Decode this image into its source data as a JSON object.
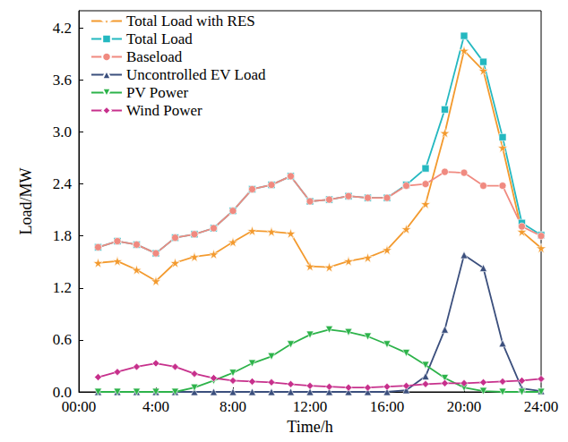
{
  "chart_data": {
    "type": "line",
    "x_label": "Time/h",
    "y_label": "Load/MW",
    "xlim": [
      0,
      24
    ],
    "xticks": [
      {
        "value": 0,
        "label": "00:00"
      },
      {
        "value": 4,
        "label": "4:00"
      },
      {
        "value": 8,
        "label": "8:00"
      },
      {
        "value": 12,
        "label": "12:00"
      },
      {
        "value": 16,
        "label": "16:00"
      },
      {
        "value": 20,
        "label": "20:00"
      },
      {
        "value": 24,
        "label": "24:00"
      }
    ],
    "ylim": [
      0,
      4.4
    ],
    "yticks": [
      {
        "value": 0,
        "label": "0.0"
      },
      0.6,
      1.2,
      1.8,
      2.4,
      {
        "value": 3,
        "label": "3.0"
      },
      3.6,
      4.2
    ],
    "grid": false,
    "legend": "upper left",
    "x": [
      1,
      2,
      3,
      4,
      5,
      6,
      7,
      8,
      9,
      10,
      11,
      12,
      13,
      14,
      15,
      16,
      17,
      18,
      19,
      20,
      21,
      22,
      23,
      24
    ],
    "series": [
      {
        "name": "Total Load with RES",
        "color": "#F39A2E",
        "marker": "star",
        "values": [
          1.49,
          1.51,
          1.41,
          1.28,
          1.49,
          1.56,
          1.59,
          1.73,
          1.86,
          1.85,
          1.83,
          1.45,
          1.44,
          1.51,
          1.55,
          1.64,
          1.88,
          2.17,
          2.99,
          3.94,
          3.71,
          2.82,
          1.85,
          1.66
        ]
      },
      {
        "name": "Total Load",
        "color": "#24B8C0",
        "marker": "square",
        "values": [
          1.67,
          1.74,
          1.7,
          1.6,
          1.78,
          1.82,
          1.89,
          2.09,
          2.34,
          2.39,
          2.49,
          2.2,
          2.22,
          2.26,
          2.24,
          2.24,
          2.39,
          2.58,
          3.26,
          4.11,
          3.81,
          2.94,
          1.95,
          1.81
        ]
      },
      {
        "name": "Baseload",
        "color": "#F08A80",
        "marker": "circle",
        "values": [
          1.67,
          1.74,
          1.7,
          1.6,
          1.78,
          1.82,
          1.89,
          2.09,
          2.34,
          2.39,
          2.49,
          2.2,
          2.22,
          2.26,
          2.24,
          2.24,
          2.38,
          2.4,
          2.54,
          2.53,
          2.38,
          2.38,
          1.91,
          1.8
        ]
      },
      {
        "name": "Uncontrolled EV Load",
        "color": "#3B4F7D",
        "marker": "triangle-up",
        "values": [
          0,
          0,
          0,
          0,
          0,
          0,
          0,
          0,
          0,
          0,
          0,
          0,
          0,
          0,
          0,
          0,
          0.02,
          0.18,
          0.72,
          1.58,
          1.43,
          0.56,
          0.04,
          0.01
        ]
      },
      {
        "name": "PV Power",
        "color": "#2DB34A",
        "marker": "triangle-down",
        "values": [
          0,
          0,
          0,
          0,
          0,
          0.05,
          0.13,
          0.22,
          0.33,
          0.41,
          0.55,
          0.66,
          0.72,
          0.69,
          0.64,
          0.55,
          0.45,
          0.31,
          0.16,
          0.05,
          0.01,
          0,
          0,
          0
        ]
      },
      {
        "name": "Wind Power",
        "color": "#C7308C",
        "marker": "diamond",
        "values": [
          0.17,
          0.23,
          0.29,
          0.33,
          0.29,
          0.21,
          0.16,
          0.13,
          0.12,
          0.11,
          0.09,
          0.07,
          0.06,
          0.05,
          0.05,
          0.06,
          0.07,
          0.09,
          0.1,
          0.1,
          0.11,
          0.12,
          0.13,
          0.15
        ]
      }
    ]
  }
}
